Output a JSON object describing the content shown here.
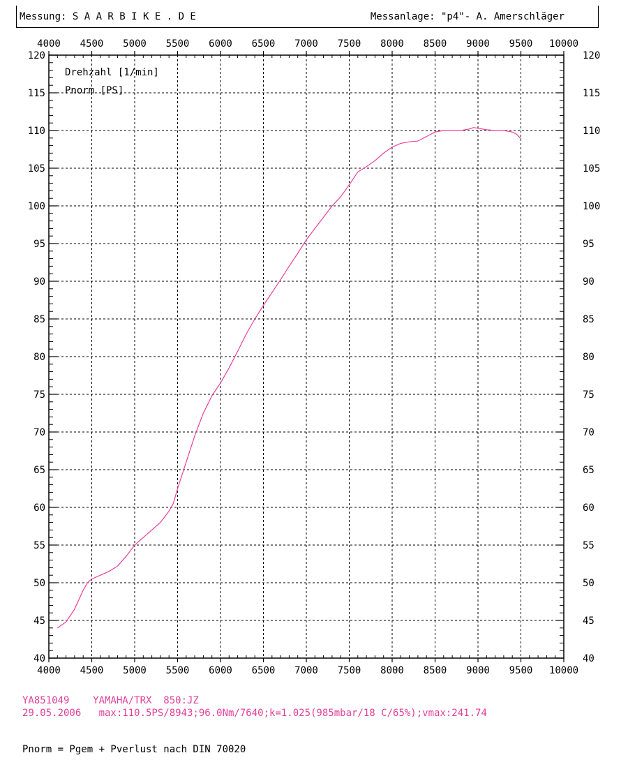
{
  "header": {
    "left": "Messung: S A A R B I K E . D E",
    "right": "Messanlage: \"p4\"- A. Amerschläger"
  },
  "footer": {
    "line1": "YA851049    YAMAHA/TRX  850:JZ",
    "line2": "29.05.2006   max:110.5PS/8943;96.0Nm/7640;k=1.025(985mbar/18 C/65%);vmax:241.74",
    "note": "Pnorm = Pgem + Pverlust nach DIN 70020"
  },
  "colors": {
    "curve": "#e8409e",
    "grid": "#000000",
    "footer_text": "#e0409a"
  },
  "chart_data": {
    "type": "line",
    "legend": [
      "Drehzahl [1/min]",
      "Pnorm [PS]"
    ],
    "xlim": [
      4000,
      10000
    ],
    "ylim": [
      40,
      120
    ],
    "x_ticks": [
      4000,
      4500,
      5000,
      5500,
      6000,
      6500,
      7000,
      7500,
      8000,
      8500,
      9000,
      9500,
      10000
    ],
    "y_ticks": [
      40,
      45,
      50,
      55,
      60,
      65,
      70,
      75,
      80,
      85,
      90,
      95,
      100,
      105,
      110,
      115,
      120
    ],
    "grid": true,
    "series": [
      {
        "x": [
          4100,
          4200,
          4300,
          4400,
          4450,
          4500,
          4600,
          4700,
          4800,
          4900,
          5000,
          5100,
          5200,
          5300,
          5400,
          5450,
          5500,
          5600,
          5700,
          5800,
          5900,
          6000,
          6100,
          6200,
          6300,
          6400,
          6500,
          6600,
          6700,
          6800,
          6900,
          7000,
          7100,
          7200,
          7300,
          7400,
          7500,
          7600,
          7700,
          7800,
          7900,
          8000,
          8100,
          8200,
          8300,
          8400,
          8500,
          8600,
          8700,
          8800,
          8900,
          8950,
          9000,
          9100,
          9200,
          9300,
          9400,
          9450,
          9500
        ],
        "y": [
          44.0,
          44.8,
          46.5,
          49.0,
          50.0,
          50.5,
          51.0,
          51.5,
          52.2,
          53.5,
          55.0,
          56.0,
          57.0,
          58.0,
          59.5,
          60.5,
          62.5,
          66.0,
          69.5,
          72.5,
          74.8,
          76.5,
          78.5,
          80.7,
          83.0,
          85.0,
          86.8,
          88.5,
          90.2,
          92.0,
          93.7,
          95.5,
          97.0,
          98.5,
          100.0,
          101.2,
          102.8,
          104.5,
          105.2,
          106.0,
          107.0,
          107.8,
          108.3,
          108.5,
          108.6,
          109.2,
          109.8,
          110.0,
          110.0,
          110.0,
          110.2,
          110.4,
          110.3,
          110.1,
          110.0,
          110.0,
          109.8,
          109.5,
          108.9
        ]
      }
    ]
  }
}
